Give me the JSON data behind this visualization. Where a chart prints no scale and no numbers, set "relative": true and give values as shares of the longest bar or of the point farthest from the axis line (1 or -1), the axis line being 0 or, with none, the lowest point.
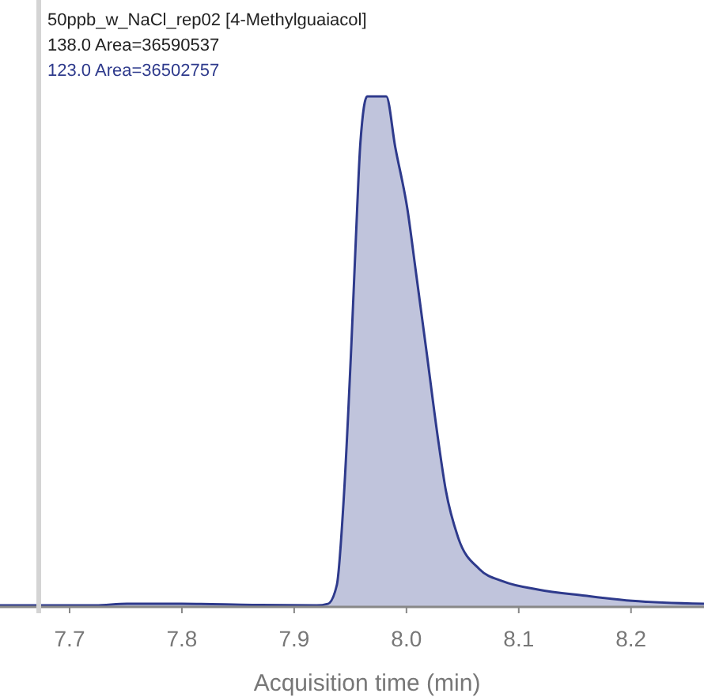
{
  "chart_data": {
    "type": "area",
    "title": "50ppb_w_NaCl_rep02 [4-Methylguaiacol]",
    "xlabel": "Acquisition time (min)",
    "relative": true,
    "annotations": [
      "138.0 Area=36590537"
    ],
    "x": [
      7.638,
      7.723,
      7.751,
      7.8,
      7.863,
      7.92,
      7.93,
      7.938,
      7.944,
      7.951,
      7.955,
      7.959,
      7.965,
      7.982,
      7.99,
      8.001,
      8.008,
      8.018,
      8.028,
      8.035,
      8.046,
      8.065,
      8.086,
      8.117,
      8.159,
      8.201,
      8.265
    ],
    "series": [
      {
        "name": "123.0 Area=36502757",
        "color": "#2e3a8c",
        "values": [
          0.003,
          0.003,
          0.006,
          0.006,
          0.004,
          0.003,
          0.006,
          0.043,
          0.207,
          0.517,
          0.724,
          0.91,
          1,
          1,
          0.901,
          0.777,
          0.663,
          0.498,
          0.331,
          0.229,
          0.136,
          0.074,
          0.05,
          0.034,
          0.022,
          0.012,
          0.006
        ]
      }
    ],
    "xlim": [
      7.638,
      8.265
    ],
    "xticks": [
      7.7,
      7.8,
      7.9,
      {
        "value": 8,
        "label": "8.0"
      },
      8.1,
      8.2
    ],
    "legend": "top left"
  }
}
